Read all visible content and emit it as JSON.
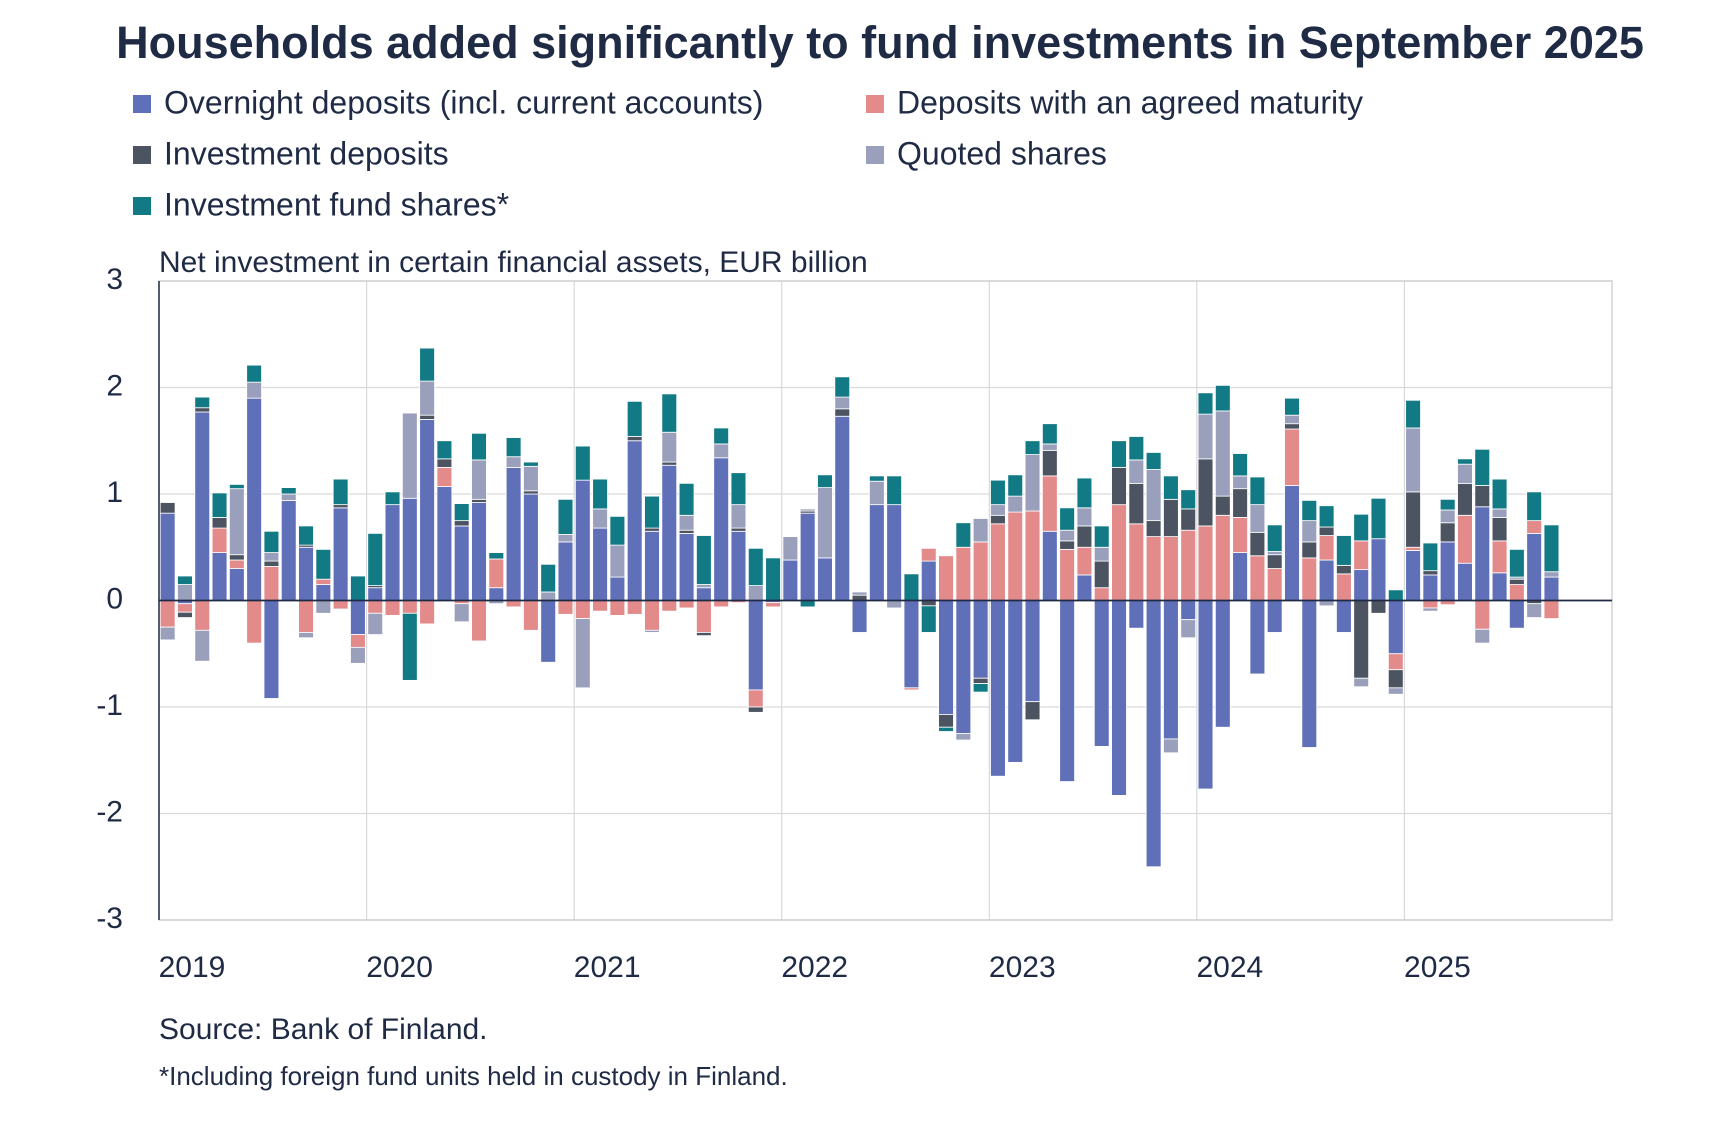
{
  "chart_data": {
    "type": "stacked-bar",
    "title": "Households added significantly to fund investments in September 2025",
    "subtitle": "Net investment in certain financial assets, EUR billion",
    "source": "Source: Bank of Finland.",
    "footnote": "*Including foreign fund units held in custody in Finland.",
    "categories": [
      "2019",
      null,
      null,
      null,
      null,
      null,
      null,
      null,
      null,
      null,
      null,
      null,
      "2020",
      null,
      null,
      null,
      null,
      null,
      null,
      null,
      null,
      null,
      null,
      null,
      "2021",
      null,
      null,
      null,
      null,
      null,
      null,
      null,
      null,
      null,
      null,
      null,
      "2022",
      null,
      null,
      null,
      null,
      null,
      null,
      null,
      null,
      null,
      null,
      null,
      "2023",
      null,
      null,
      null,
      null,
      null,
      null,
      null,
      null,
      null,
      null,
      null,
      "2024",
      null,
      null,
      null,
      null,
      null,
      null,
      null,
      null,
      null,
      null,
      null,
      "2025",
      null,
      null,
      null,
      null,
      null,
      null,
      null,
      null
    ],
    "series": [
      {
        "name": "Overnight deposits (incl. current accounts)",
        "color": "#6070b8",
        "values": [
          0.82,
          -0.03,
          1.77,
          0.45,
          0.3,
          1.9,
          -0.92,
          0.94,
          0.5,
          0.15,
          0.87,
          -0.32,
          0.12,
          0.9,
          0.96,
          1.7,
          1.07,
          0.7,
          0.92,
          0.12,
          1.25,
          1.0,
          -0.58,
          0.55,
          1.13,
          0.68,
          0.22,
          1.5,
          0.65,
          1.27,
          0.63,
          0.12,
          1.34,
          0.65,
          -0.84,
          -0.02,
          0.38,
          0.82,
          0.4,
          1.73,
          -0.3,
          0.9,
          0.9,
          -0.82,
          0.37,
          -1.07,
          -1.25,
          -0.73,
          -1.65,
          -1.52,
          -0.95,
          0.65,
          -1.7,
          0.24,
          -1.37,
          -1.83,
          -0.26,
          -2.5,
          -1.3,
          -0.18,
          -1.77,
          -1.19,
          0.45,
          -0.69,
          -0.3,
          1.08,
          -1.38,
          0.38,
          -0.3,
          0.29,
          0.58,
          -0.5,
          0.47,
          0.24,
          0.55,
          0.35,
          0.88,
          0.26,
          -0.26,
          0.63,
          0.22
        ]
      },
      {
        "name": "Deposits with an agreed maturity",
        "color": "#e38b8b",
        "values": [
          -0.25,
          -0.08,
          -0.28,
          0.23,
          0.08,
          -0.4,
          0.32,
          0,
          -0.3,
          0.05,
          -0.08,
          -0.12,
          -0.12,
          -0.14,
          -0.12,
          -0.22,
          0.18,
          -0.03,
          -0.38,
          0.27,
          -0.06,
          -0.28,
          0,
          -0.13,
          -0.17,
          -0.1,
          -0.14,
          -0.13,
          -0.28,
          -0.1,
          -0.07,
          -0.3,
          -0.06,
          -0.02,
          -0.16,
          -0.04,
          0,
          0,
          0,
          0,
          0,
          0,
          0,
          -0.02,
          0.12,
          0.42,
          0.5,
          0.55,
          0.72,
          0.83,
          0.84,
          0.52,
          0.48,
          0.26,
          0.12,
          0.9,
          0.72,
          0.6,
          0.6,
          0.66,
          0.7,
          0.8,
          0.33,
          0.42,
          0.3,
          0.53,
          0.4,
          0.23,
          0.25,
          0.27,
          0,
          -0.15,
          0.03,
          -0.07,
          -0.04,
          0.45,
          -0.27,
          0.3,
          0.15,
          0.12,
          -0.17
        ]
      },
      {
        "name": "Investment deposits",
        "color": "#4d5461",
        "values": [
          0.1,
          -0.05,
          0.04,
          0.1,
          0.05,
          0,
          0.05,
          0,
          0.02,
          0,
          0.03,
          0,
          0.02,
          0,
          0,
          0.04,
          0.08,
          0.05,
          0.03,
          0,
          0,
          0.03,
          0,
          0,
          0,
          0,
          0,
          0.04,
          0.03,
          0.03,
          0.03,
          -0.03,
          0,
          0.03,
          -0.05,
          0,
          0,
          0.02,
          0,
          0.07,
          0.05,
          0,
          0,
          0,
          -0.05,
          -0.12,
          0,
          -0.05,
          0.08,
          0,
          -0.17,
          0.24,
          0.08,
          0.2,
          0.25,
          0.35,
          0.38,
          0.15,
          0.35,
          0.2,
          0.63,
          0.18,
          0.27,
          0.22,
          0.13,
          0.05,
          0.15,
          0.08,
          0.08,
          -0.73,
          -0.12,
          -0.17,
          0.52,
          0.04,
          0.18,
          0.3,
          0.2,
          0.22,
          0.05,
          -0.03,
          0
        ]
      },
      {
        "name": "Quoted shares",
        "color": "#9aa0bc",
        "values": [
          -0.12,
          0.15,
          -0.29,
          0,
          0.62,
          0.15,
          0.08,
          0.06,
          -0.05,
          -0.12,
          0,
          -0.15,
          -0.2,
          0,
          0.8,
          0.32,
          0,
          -0.17,
          0.37,
          -0.03,
          0.1,
          0.23,
          0.08,
          0.07,
          -0.65,
          0.18,
          0.3,
          0,
          -0.02,
          0.28,
          0.14,
          0.03,
          0.13,
          0.22,
          0.14,
          0,
          0.22,
          0.02,
          0.66,
          0.11,
          0.03,
          0.22,
          -0.07,
          0,
          0,
          0,
          -0.06,
          0.22,
          0.1,
          0.15,
          0.53,
          0.06,
          0.1,
          0.17,
          0.13,
          0,
          0.22,
          0.48,
          -0.13,
          -0.17,
          0.42,
          0.8,
          0.12,
          0.26,
          0.03,
          0.08,
          0.2,
          -0.05,
          0,
          -0.08,
          0,
          -0.06,
          0.6,
          -0.03,
          0.12,
          0.18,
          -0.13,
          0.08,
          0.02,
          -0.13,
          0.05
        ]
      },
      {
        "name": "Investment fund shares*",
        "color": "#127a84",
        "values": [
          0,
          0.08,
          0.1,
          0.23,
          0.04,
          0.16,
          0.2,
          0.06,
          0.18,
          0.28,
          0.24,
          0.23,
          0.49,
          0.12,
          -0.63,
          0.31,
          0.17,
          0.16,
          0.25,
          0.06,
          0.18,
          0.04,
          0.26,
          0.33,
          0.32,
          0.28,
          0.27,
          0.33,
          0.3,
          0.36,
          0.3,
          0.46,
          0.15,
          0.3,
          0.35,
          0.4,
          0,
          -0.06,
          0.12,
          0.19,
          0,
          0.05,
          0.27,
          0.25,
          -0.25,
          -0.04,
          0.23,
          -0.08,
          0.23,
          0.2,
          0.13,
          0.19,
          0.21,
          0.28,
          0.2,
          0.25,
          0.22,
          0.16,
          0.22,
          0.18,
          0.2,
          0.24,
          0.21,
          0.26,
          0.25,
          0.16,
          0.19,
          0.2,
          0.28,
          0.25,
          0.38,
          0.1,
          0.26,
          0.26,
          0.1,
          0.05,
          0.34,
          0.28,
          0.26,
          0.27,
          0.44
        ]
      }
    ],
    "ylim": [
      -3,
      3
    ],
    "yticks": [
      -3,
      -2,
      -1,
      0,
      1,
      2,
      3
    ],
    "grid": true,
    "legend": "top"
  }
}
